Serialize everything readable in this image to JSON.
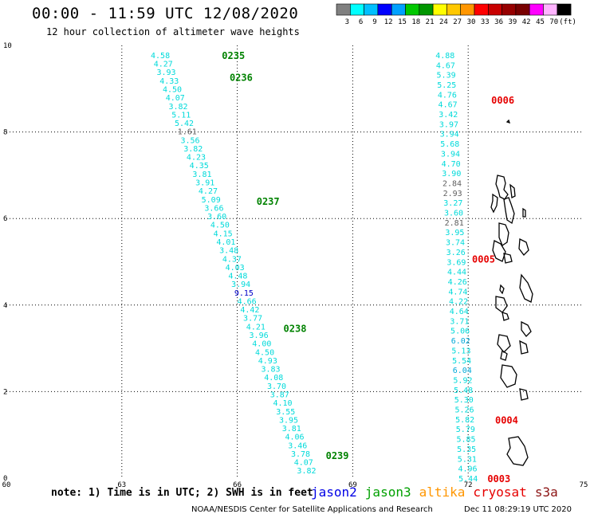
{
  "header": {
    "title": "00:00 - 11:59 UTC 12/08/2020",
    "subtitle": "12 hour collection of altimeter wave heights"
  },
  "color_scale": {
    "labels": [
      "3",
      "6",
      "9",
      "12",
      "15",
      "18",
      "21",
      "24",
      "27",
      "30",
      "33",
      "36",
      "39",
      "42",
      "45",
      "70",
      "(ft)"
    ],
    "colors": [
      "#808080",
      "#00ffff",
      "#00bfff",
      "#0000ff",
      "#00a0ff",
      "#00c800",
      "#009600",
      "#ffff00",
      "#ffc800",
      "#ff9600",
      "#ff0000",
      "#c80000",
      "#960000",
      "#780000",
      "#ff00ff",
      "#ffb4ff",
      "#000000"
    ]
  },
  "chart_data": {
    "type": "scatter",
    "xlim": [
      60,
      75
    ],
    "ylim": [
      0,
      10
    ],
    "xticks": [
      "60",
      "63",
      "66",
      "69",
      "72",
      "75"
    ],
    "yticks": [
      "0",
      "2",
      "4",
      "6",
      "8",
      "10"
    ],
    "grid": true,
    "tracks": [
      {
        "satellite": "jason3",
        "start": [
          64.0,
          9.78
        ],
        "end": [
          67.8,
          0.18
        ],
        "values": [
          "4.58",
          "4.27",
          "3.93",
          "4.33",
          "4.50",
          "4.07",
          "3.82",
          "5.11",
          "5.42",
          "1.61",
          "3.56",
          "3.82",
          "4.23",
          "4.35",
          "3.81",
          "3.91",
          "4.27",
          "5.09",
          "3.66",
          "3.60",
          "4.50",
          "4.15",
          "4.01",
          "3.48",
          "4.37",
          "4.03",
          "4.48",
          "3.94",
          "9.15",
          "4.66",
          "4.42",
          "3.77",
          "4.21",
          "3.96",
          "4.00",
          "4.50",
          "4.93",
          "3.83",
          "4.08",
          "3.70",
          "3.87",
          "4.10",
          "3.55",
          "3.95",
          "3.81",
          "4.06",
          "3.46",
          "3.78",
          "4.07",
          "3.82"
        ],
        "colors": {
          "1.61": "#606060",
          "9.15": "#0000c8"
        },
        "default_color": "#00dada",
        "time_labels": [
          {
            "text": "0235",
            "x": 65.6,
            "y": 9.78
          },
          {
            "text": "0236",
            "x": 65.8,
            "y": 9.27
          },
          {
            "text": "0237",
            "x": 66.5,
            "y": 6.41
          },
          {
            "text": "0238",
            "x": 67.2,
            "y": 3.47
          },
          {
            "text": "0239",
            "x": 68.3,
            "y": 0.53
          }
        ],
        "time_color": "#008200"
      },
      {
        "satellite": "cryosat",
        "start": [
          71.4,
          9.78
        ],
        "end": [
          72.0,
          0.0
        ],
        "values": [
          "4.88",
          "4.67",
          "5.39",
          "5.25",
          "4.76",
          "4.67",
          "3.42",
          "3.97",
          "3.94",
          "5.68",
          "3.94",
          "4.70",
          "3.90",
          "2.84",
          "2.93",
          "3.27",
          "3.60",
          "2.81",
          "3.95",
          "3.74",
          "3.26",
          "3.69",
          "4.44",
          "4.26",
          "4.74",
          "4.22",
          "4.64",
          "3.71",
          "5.06",
          "6.02",
          "5.13",
          "5.54",
          "6.04",
          "5.92",
          "5.48",
          "5.30",
          "5.26",
          "5.82",
          "5.79",
          "5.85",
          "5.35",
          "5.31",
          "4.96",
          "5.44"
        ],
        "colors": {
          "2.84": "#606060",
          "2.93": "#606060",
          "2.81": "#606060",
          "6.02": "#00a8d8",
          "6.04": "#00a8d8"
        },
        "default_color": "#00dada",
        "time_labels": [
          {
            "text": "0006",
            "x": 72.6,
            "y": 8.75
          },
          {
            "text": "0005",
            "x": 72.1,
            "y": 5.07
          },
          {
            "text": "0004",
            "x": 72.7,
            "y": 1.35
          },
          {
            "text": "0003",
            "x": 72.5,
            "y": 0.0
          }
        ],
        "time_color": "#e60000"
      }
    ]
  },
  "footer": {
    "note": "note: 1) Time is in UTC; 2) SWH is in feet",
    "legend": [
      {
        "name": "jason2",
        "color": "#0000e6"
      },
      {
        "name": "jason3",
        "color": "#00a000"
      },
      {
        "name": "altika",
        "color": "#ff9600"
      },
      {
        "name": "cryosat",
        "color": "#e60000"
      },
      {
        "name": "s3a",
        "color": "#8c1414"
      }
    ],
    "credit": "NOAA/NESDIS Center for Satellite Applications and Research",
    "timestamp": "Dec 11 08:29:19 UTC 2020"
  }
}
